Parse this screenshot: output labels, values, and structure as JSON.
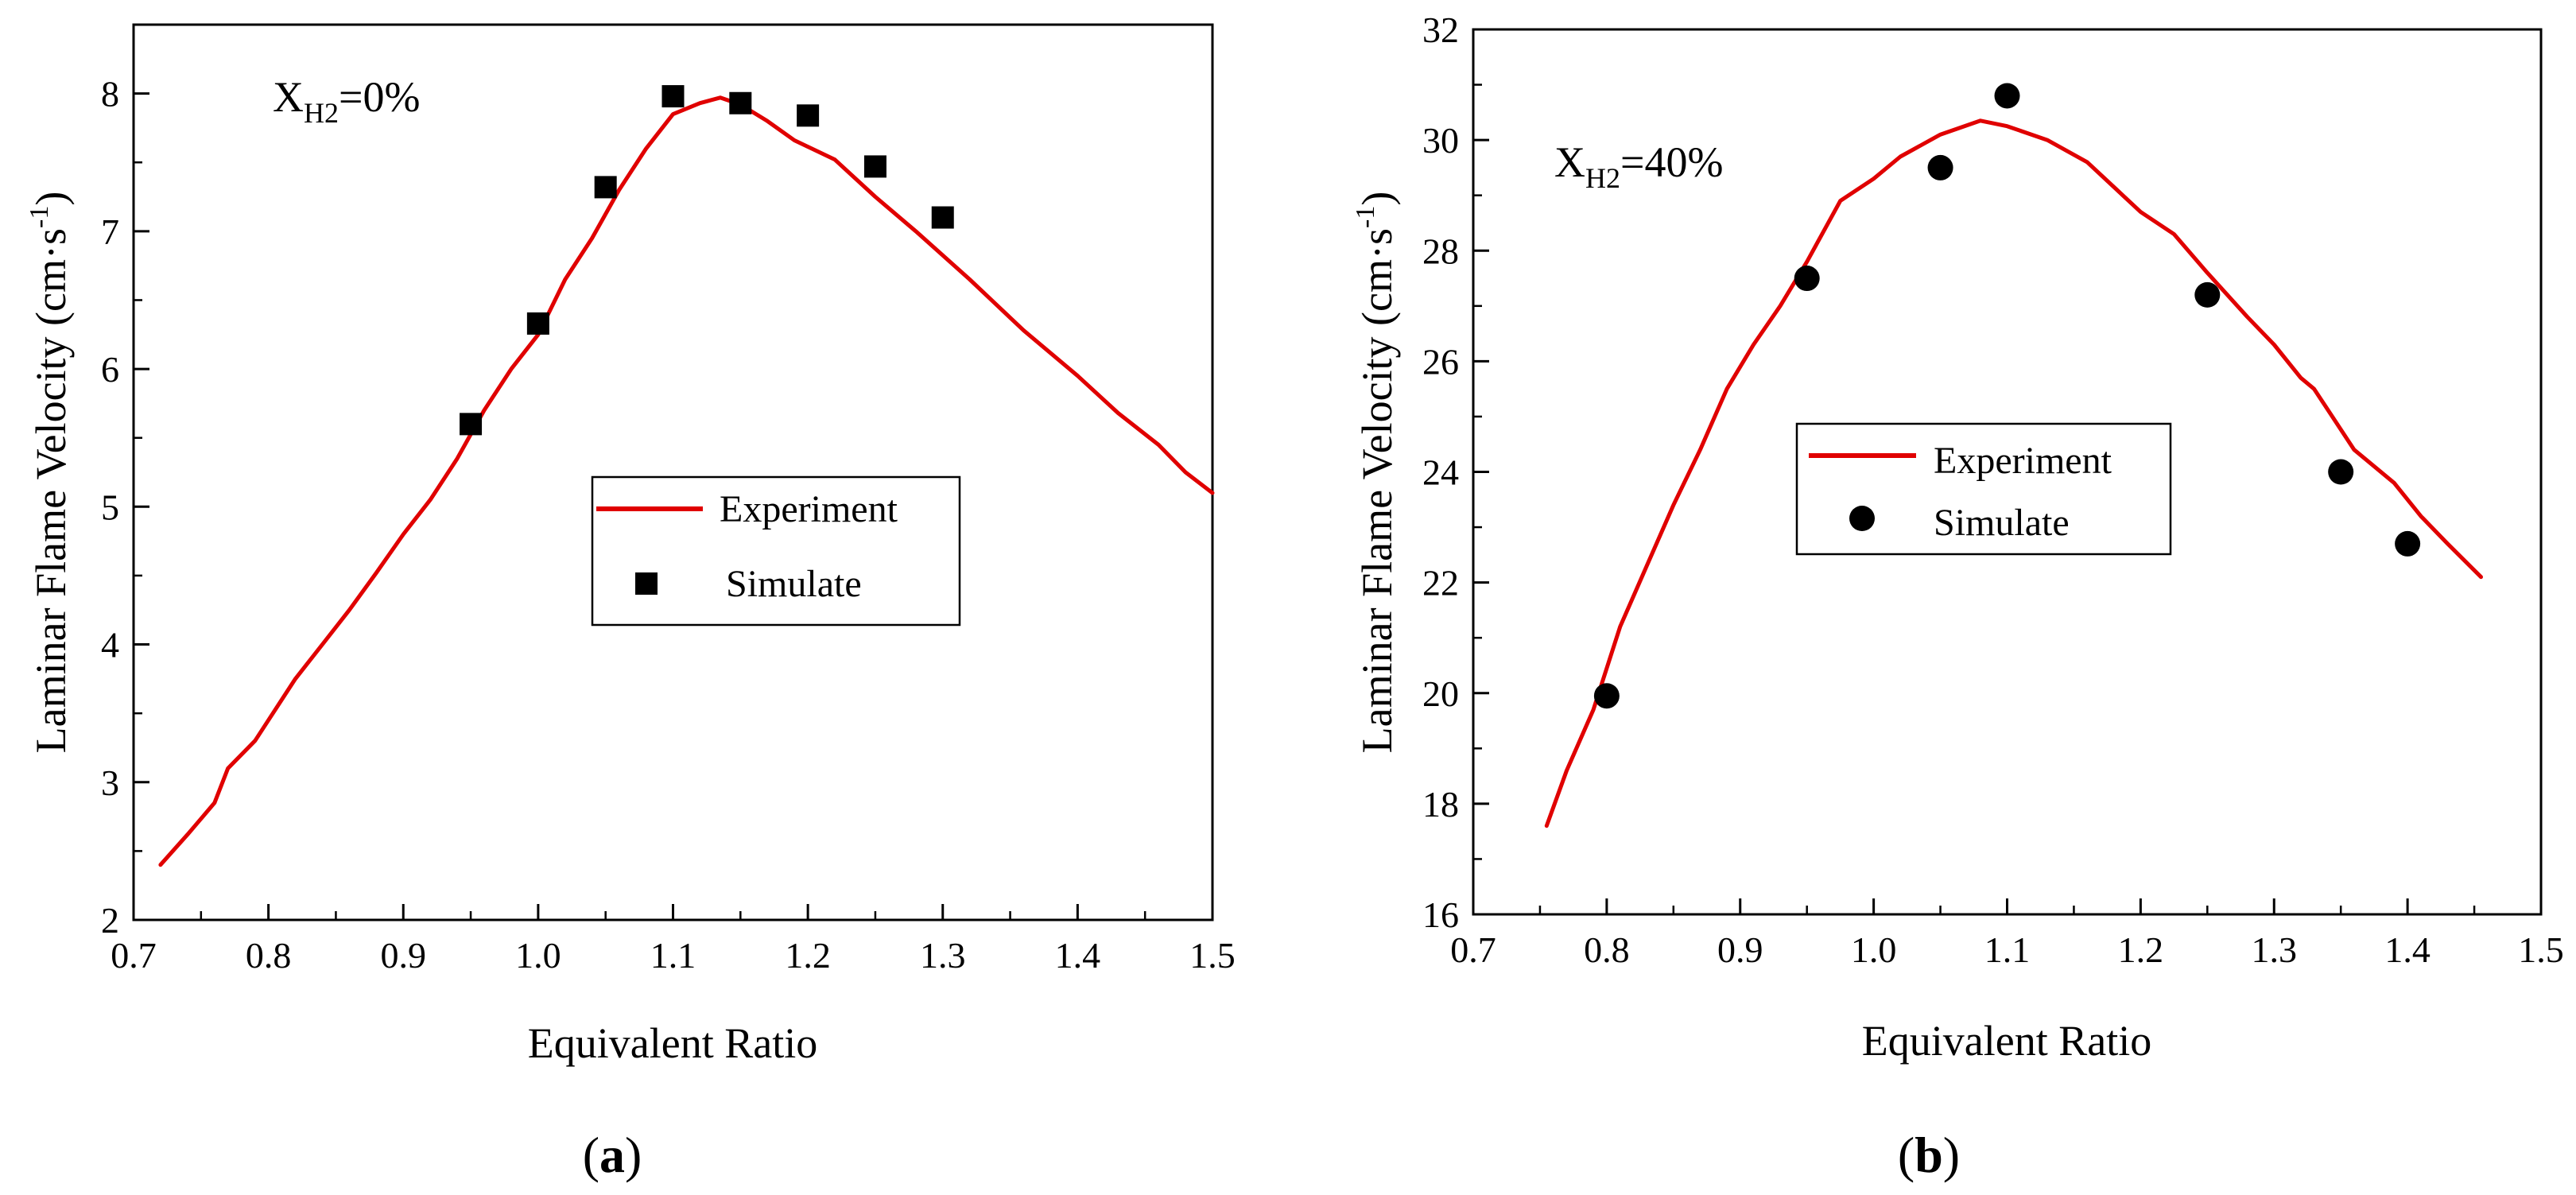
{
  "chart_data": [
    {
      "type": "line",
      "panel_label": {
        "open": "(",
        "letter": "a",
        "close": ")"
      },
      "annotation": {
        "main": "X",
        "sub": "H2",
        "rest": "=0%"
      },
      "xlabel": "Equivalent Ratio",
      "ylabel": {
        "main": "Laminar Flame Velocity (cm·s",
        "sup": "-1",
        "end": ")"
      },
      "xlim": [
        0.7,
        1.5
      ],
      "ylim": [
        2,
        8.5
      ],
      "xticks": [
        "0.7",
        "0.8",
        "0.9",
        "1.0",
        "1.1",
        "1.2",
        "1.3",
        "1.4",
        "1.5"
      ],
      "yticks": [
        "2",
        "3",
        "4",
        "5",
        "6",
        "7",
        "8"
      ],
      "legend": {
        "position": "center-right"
      },
      "series": [
        {
          "name": "Experiment",
          "kind": "line",
          "color": "#e00000",
          "x": [
            0.72,
            0.74,
            0.76,
            0.77,
            0.79,
            0.8,
            0.82,
            0.84,
            0.86,
            0.88,
            0.9,
            0.92,
            0.94,
            0.96,
            0.98,
            1.0,
            1.02,
            1.04,
            1.06,
            1.08,
            1.1,
            1.12,
            1.135,
            1.15,
            1.17,
            1.19,
            1.22,
            1.25,
            1.28,
            1.32,
            1.36,
            1.4,
            1.43,
            1.46,
            1.48,
            1.5
          ],
          "y": [
            2.4,
            2.62,
            2.85,
            3.1,
            3.3,
            3.45,
            3.75,
            4.0,
            4.25,
            4.52,
            4.8,
            5.05,
            5.35,
            5.7,
            6.0,
            6.25,
            6.65,
            6.95,
            7.3,
            7.6,
            7.85,
            7.93,
            7.97,
            7.92,
            7.8,
            7.66,
            7.52,
            7.25,
            7.0,
            6.65,
            6.28,
            5.95,
            5.68,
            5.45,
            5.25,
            5.1
          ]
        },
        {
          "name": "Simulate",
          "kind": "scatter",
          "marker": "square",
          "color": "#000000",
          "x": [
            0.95,
            1.0,
            1.05,
            1.1,
            1.15,
            1.2,
            1.25,
            1.3
          ],
          "y": [
            5.6,
            6.33,
            7.32,
            7.98,
            7.93,
            7.84,
            7.47,
            7.1
          ]
        }
      ]
    },
    {
      "type": "line",
      "panel_label": {
        "open": "(",
        "letter": "b",
        "close": ")"
      },
      "annotation": {
        "main": "X",
        "sub": "H2",
        "rest": "=40%"
      },
      "xlabel": "Equivalent Ratio",
      "ylabel": {
        "main": "Laminar Flame Velocity (cm·s",
        "sup": "-1",
        "end": ")"
      },
      "xlim": [
        0.7,
        1.5
      ],
      "ylim": [
        16,
        32
      ],
      "xticks": [
        "0.7",
        "0.8",
        "0.9",
        "1.0",
        "1.1",
        "1.2",
        "1.3",
        "1.4",
        "1.5"
      ],
      "yticks": [
        "16",
        "18",
        "20",
        "22",
        "24",
        "26",
        "28",
        "30",
        "32"
      ],
      "legend": {
        "position": "center"
      },
      "series": [
        {
          "name": "Experiment",
          "kind": "line",
          "color": "#e00000",
          "x": [
            0.755,
            0.77,
            0.79,
            0.81,
            0.83,
            0.85,
            0.87,
            0.89,
            0.91,
            0.93,
            0.95,
            0.975,
            1.0,
            1.02,
            1.05,
            1.08,
            1.1,
            1.13,
            1.16,
            1.2,
            1.225,
            1.25,
            1.28,
            1.3,
            1.32,
            1.33,
            1.36,
            1.39,
            1.41,
            1.43,
            1.455
          ],
          "y": [
            17.6,
            18.6,
            19.7,
            21.2,
            22.3,
            23.4,
            24.4,
            25.5,
            26.3,
            27.0,
            27.8,
            28.9,
            29.3,
            29.7,
            30.1,
            30.35,
            30.25,
            30.0,
            29.6,
            28.7,
            28.3,
            27.6,
            26.8,
            26.3,
            25.7,
            25.5,
            24.4,
            23.8,
            23.2,
            22.7,
            22.1
          ]
        },
        {
          "name": "Simulate",
          "kind": "scatter",
          "marker": "circle",
          "color": "#000000",
          "x": [
            0.8,
            0.95,
            1.05,
            1.1,
            1.25,
            1.35,
            1.4
          ],
          "y": [
            19.95,
            27.5,
            29.5,
            30.8,
            27.2,
            24.0,
            22.7
          ]
        }
      ]
    }
  ]
}
